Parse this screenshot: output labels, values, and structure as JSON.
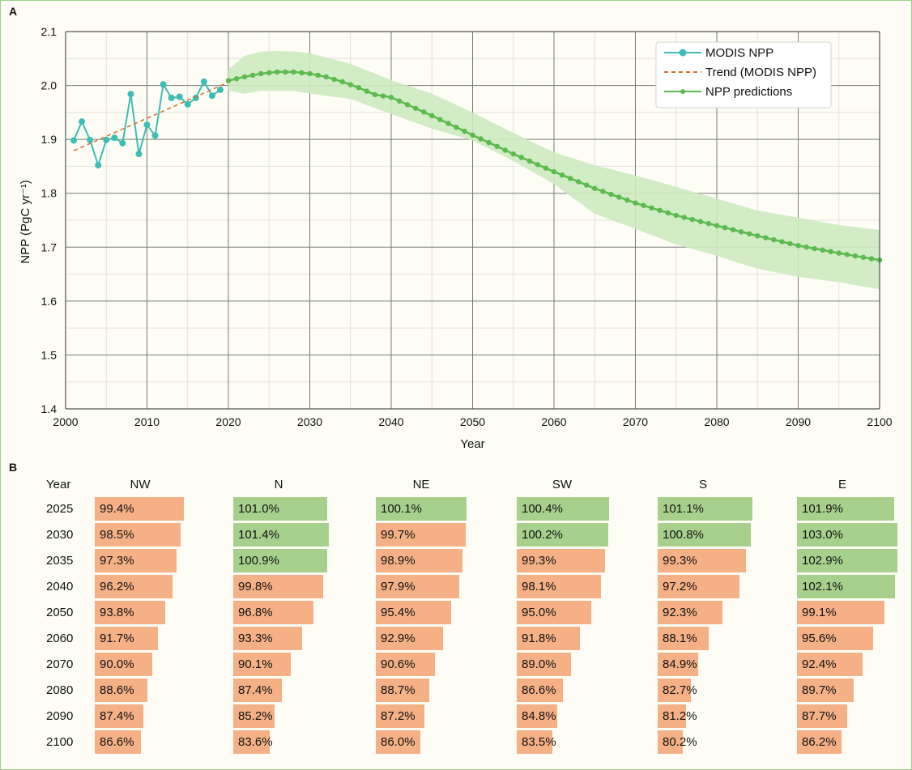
{
  "panels": {
    "a_label": "A",
    "b_label": "B"
  },
  "colors": {
    "modis": "#3dbdb4",
    "trend": "#d96c2c",
    "prediction": "#5cba4e",
    "band": "#cdeac0",
    "increase_bar": "#a8d08d",
    "decrease_bar": "#f5b085"
  },
  "chart_data": [
    {
      "type": "line",
      "title": "",
      "xlabel": "Year",
      "ylabel": "NPP (PgC yr⁻¹)",
      "xlim": [
        2000,
        2100
      ],
      "ylim": [
        1.4,
        2.1
      ],
      "xticks": [
        2000,
        2010,
        2020,
        2030,
        2040,
        2050,
        2060,
        2070,
        2080,
        2090,
        2100
      ],
      "yticks": [
        1.4,
        1.5,
        1.6,
        1.7,
        1.8,
        1.9,
        2.0,
        2.1
      ],
      "grid": true,
      "legend_position": "top-right",
      "series": [
        {
          "name": "MODIS NPP",
          "style": "line-with-markers",
          "x": [
            2001,
            2002,
            2003,
            2004,
            2005,
            2006,
            2007,
            2008,
            2009,
            2010,
            2011,
            2012,
            2013,
            2014,
            2015,
            2016,
            2017,
            2018,
            2019
          ],
          "y": [
            1.898,
            1.933,
            1.899,
            1.852,
            1.899,
            1.903,
            1.893,
            1.984,
            1.873,
            1.927,
            1.907,
            2.002,
            1.977,
            1.979,
            1.965,
            1.977,
            2.007,
            1.981,
            1.992
          ]
        },
        {
          "name": "Trend (MODIS NPP)",
          "style": "dashed",
          "x": [
            2001,
            2020
          ],
          "y": [
            1.879,
            2.006
          ]
        },
        {
          "name": "NPP predictions",
          "style": "line-with-markers",
          "x_start": 2020,
          "x_end": 2100,
          "anchors": {
            "x": [
              2020,
              2022,
              2024,
              2026,
              2028,
              2030,
              2032,
              2034,
              2036,
              2038,
              2040,
              2045,
              2050,
              2055,
              2060,
              2065,
              2070,
              2075,
              2080,
              2085,
              2090,
              2095,
              2100
            ],
            "y": [
              2.009,
              2.016,
              2.022,
              2.025,
              2.025,
              2.022,
              2.016,
              2.007,
              1.996,
              1.983,
              1.978,
              1.944,
              1.908,
              1.873,
              1.84,
              1.809,
              1.782,
              1.759,
              1.74,
              1.721,
              1.703,
              1.689,
              1.676
            ]
          },
          "band_upper": {
            "x": [
              2020,
              2022,
              2024,
              2026,
              2028,
              2030,
              2035,
              2040,
              2045,
              2050,
              2055,
              2060,
              2065,
              2070,
              2075,
              2080,
              2085,
              2090,
              2095,
              2100
            ],
            "y": [
              2.03,
              2.055,
              2.063,
              2.064,
              2.063,
              2.06,
              2.04,
              2.01,
              1.985,
              1.95,
              1.912,
              1.876,
              1.852,
              1.833,
              1.812,
              1.79,
              1.768,
              1.755,
              1.741,
              1.732
            ]
          },
          "band_lower": {
            "x": [
              2020,
              2022,
              2024,
              2026,
              2028,
              2030,
              2035,
              2040,
              2045,
              2050,
              2055,
              2060,
              2065,
              2070,
              2075,
              2080,
              2085,
              2090,
              2095,
              2100
            ],
            "y": [
              1.99,
              1.985,
              1.99,
              1.99,
              1.99,
              1.985,
              1.975,
              1.947,
              1.92,
              1.898,
              1.86,
              1.817,
              1.762,
              1.734,
              1.705,
              1.684,
              1.66,
              1.645,
              1.635,
              1.622
            ]
          }
        }
      ]
    },
    {
      "type": "table",
      "header_year": "Year",
      "regions": [
        "NW",
        "N",
        "NE",
        "SW",
        "S",
        "E"
      ],
      "years": [
        "2025",
        "2030",
        "2035",
        "2040",
        "2050",
        "2060",
        "2070",
        "2080",
        "2090",
        "2100"
      ],
      "values": [
        [
          99.4,
          101.0,
          100.1,
          100.4,
          101.1,
          101.9
        ],
        [
          98.5,
          101.4,
          99.7,
          100.2,
          100.8,
          103.0
        ],
        [
          97.3,
          100.9,
          98.9,
          99.3,
          99.3,
          102.9
        ],
        [
          96.2,
          99.8,
          97.9,
          98.1,
          97.2,
          102.1
        ],
        [
          93.8,
          96.8,
          95.4,
          95.0,
          92.3,
          99.1
        ],
        [
          91.7,
          93.3,
          92.9,
          91.8,
          88.1,
          95.6
        ],
        [
          90.0,
          90.1,
          90.6,
          89.0,
          84.9,
          92.4
        ],
        [
          88.6,
          87.4,
          88.7,
          86.6,
          82.7,
          89.7
        ],
        [
          87.4,
          85.2,
          87.2,
          84.8,
          81.2,
          87.7
        ],
        [
          86.6,
          83.6,
          86.0,
          83.5,
          80.2,
          86.2
        ]
      ],
      "labels": [
        [
          "99.4%",
          "101.0%",
          "100.1%",
          "100.4%",
          "101.1%",
          "101.9%"
        ],
        [
          "98.5%",
          "101.4%",
          "99.7%",
          "100.2%",
          "100.8%",
          "103.0%"
        ],
        [
          "97.3%",
          "100.9%",
          "98.9%",
          "99.3%",
          "99.3%",
          "102.9%"
        ],
        [
          "96.2%",
          "99.8%",
          "97.9%",
          "98.1%",
          "97.2%",
          "102.1%"
        ],
        [
          "93.8%",
          "96.8%",
          "95.4%",
          "95.0%",
          "92.3%",
          "99.1%"
        ],
        [
          "91.7%",
          "93.3%",
          "92.9%",
          "91.8%",
          "88.1%",
          "95.6%"
        ],
        [
          "90.0%",
          "90.1%",
          "90.6%",
          "89.0%",
          "84.9%",
          "92.4%"
        ],
        [
          "88.6%",
          "87.4%",
          "88.7%",
          "86.6%",
          "82.7%",
          "89.7%"
        ],
        [
          "87.4%",
          "85.2%",
          "87.2%",
          "84.8%",
          "81.2%",
          "87.7%"
        ],
        [
          "86.6%",
          "83.6%",
          "86.0%",
          "83.5%",
          "80.2%",
          "86.2%"
        ]
      ]
    }
  ]
}
